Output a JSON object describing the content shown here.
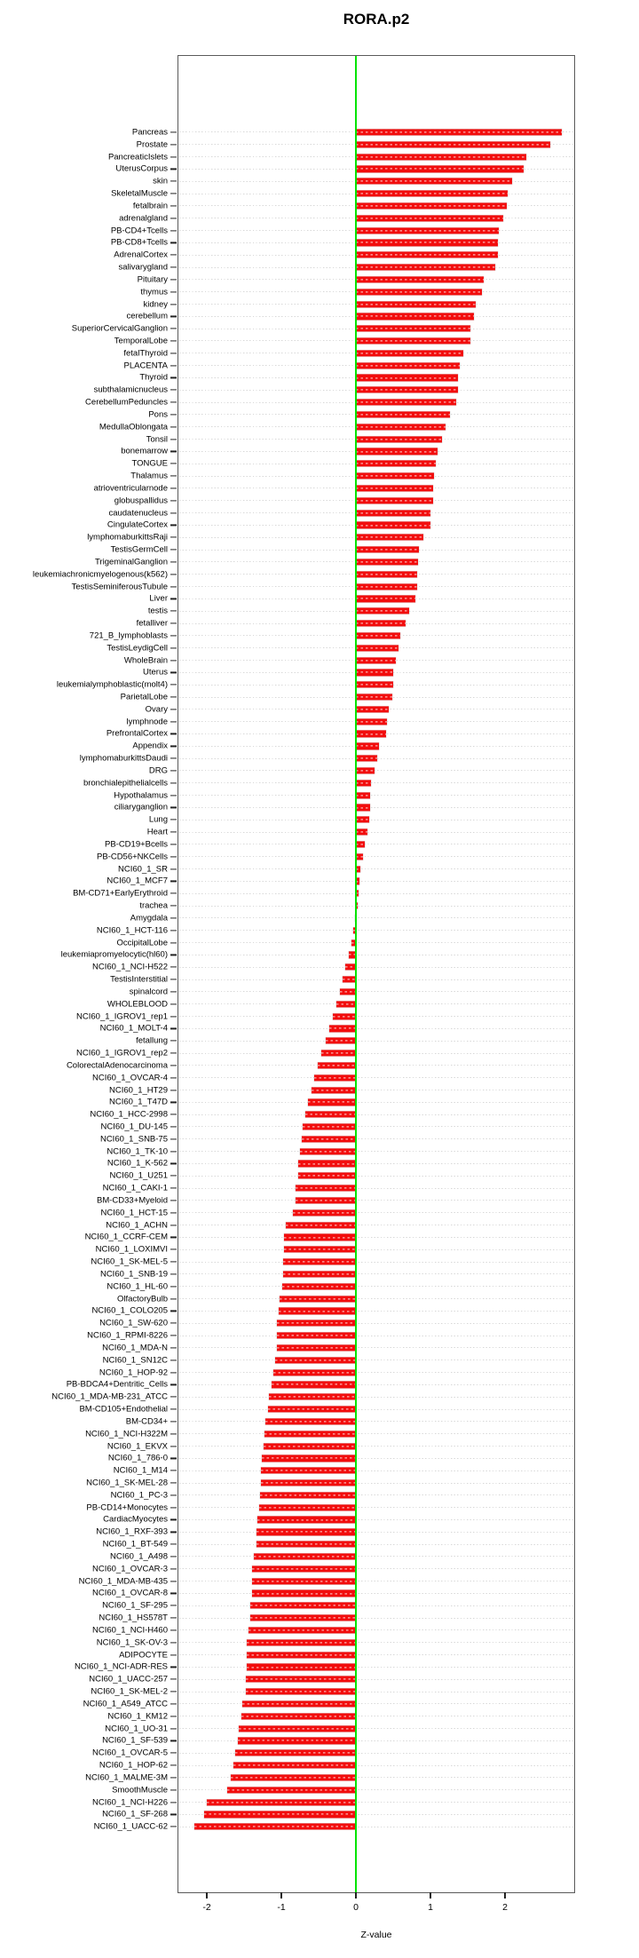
{
  "title": "RORA.p2",
  "chart_data": {
    "type": "bar",
    "orientation": "horizontal",
    "title": "RORA.p2",
    "xlabel": "Z-value",
    "x_ticks": [
      -2,
      -1,
      0,
      1,
      2
    ],
    "xlim": [
      -2.38,
      2.95
    ],
    "grid": true,
    "bar_color": "#f20d0d",
    "zero_line_color": "#00e400",
    "categories": [
      "Pancreas",
      "Prostate",
      "PancreaticIslets",
      "UterusCorpus",
      "skin",
      "SkeletalMuscle",
      "fetalbrain",
      "adrenalgland",
      "PB-CD4+Tcells",
      "PB-CD8+Tcells",
      "AdrenalCortex",
      "salivarygland",
      "Pituitary",
      "thymus",
      "kidney",
      "cerebellum",
      "SuperiorCervicalGanglion",
      "TemporalLobe",
      "fetalThyroid",
      "PLACENTA",
      "Thyroid",
      "subthalamicnucleus",
      "CerebellumPeduncles",
      "Pons",
      "MedullaOblongata",
      "Tonsil",
      "bonemarrow",
      "TONGUE",
      "Thalamus",
      "atrioventricularnode",
      "globuspallidus",
      "caudatenucleus",
      "CingulateCortex",
      "lymphomaburkittsRaji",
      "TestisGermCell",
      "TrigeminalGanglion",
      "leukemiachronicmyelogenous(k562)",
      "TestisSeminiferousTubule",
      "Liver",
      "testis",
      "fetalliver",
      "721_B_lymphoblasts",
      "TestisLeydigCell",
      "WholeBrain",
      "Uterus",
      "leukemialymphoblastic(molt4)",
      "ParietalLobe",
      "Ovary",
      "lymphnode",
      "PrefrontalCortex",
      "Appendix",
      "lymphomaburkittsDaudi",
      "DRG",
      "bronchialepithelialcells",
      "Hypothalamus",
      "ciliaryganglion",
      "Lung",
      "Heart",
      "PB-CD19+Bcells",
      "PB-CD56+NKCells",
      "NCI60_1_SR",
      "NCI60_1_MCF7",
      "BM-CD71+EarlyErythroid",
      "trachea",
      "Amygdala",
      "NCI60_1_HCT-116",
      "OccipitalLobe",
      "leukemiapromyelocytic(hl60)",
      "NCI60_1_NCI-H522",
      "TestisInterstitial",
      "spinalcord",
      "WHOLEBLOOD",
      "NCI60_1_IGROV1_rep1",
      "NCI60_1_MOLT-4",
      "fetallung",
      "NCI60_1_IGROV1_rep2",
      "ColorectalAdenocarcinoma",
      "NCI60_1_OVCAR-4",
      "NCI60_1_HT29",
      "NCI60_1_T47D",
      "NCI60_1_HCC-2998",
      "NCI60_1_DU-145",
      "NCI60_1_SNB-75",
      "NCI60_1_TK-10",
      "NCI60_1_K-562",
      "NCI60_1_U251",
      "NCI60_1_CAKI-1",
      "BM-CD33+Myeloid",
      "NCI60_1_HCT-15",
      "NCI60_1_ACHN",
      "NCI60_1_CCRF-CEM",
      "NCI60_1_LOXIMVI",
      "NCI60_1_SK-MEL-5",
      "NCI60_1_SNB-19",
      "NCI60_1_HL-60",
      "OlfactoryBulb",
      "NCI60_1_COLO205",
      "NCI60_1_SW-620",
      "NCI60_1_RPMI-8226",
      "NCI60_1_MDA-N",
      "NCI60_1_SN12C",
      "NCI60_1_HOP-92",
      "PB-BDCA4+Dentritic_Cells",
      "NCI60_1_MDA-MB-231_ATCC",
      "BM-CD105+Endothelial",
      "BM-CD34+",
      "NCI60_1_NCI-H322M",
      "NCI60_1_EKVX",
      "NCI60_1_786-0",
      "NCI60_1_M14",
      "NCI60_1_SK-MEL-28",
      "NCI60_1_PC-3",
      "PB-CD14+Monocytes",
      "CardiacMyocytes",
      "NCI60_1_RXF-393",
      "NCI60_1_BT-549",
      "NCI60_1_A498",
      "NCI60_1_OVCAR-3",
      "NCI60_1_MDA-MB-435",
      "NCI60_1_OVCAR-8",
      "NCI60_1_SF-295",
      "NCI60_1_HS578T",
      "NCI60_1_NCI-H460",
      "NCI60_1_SK-OV-3",
      "ADIPOCYTE",
      "NCI60_1_NCI-ADR-RES",
      "NCI60_1_UACC-257",
      "NCI60_1_SK-MEL-2",
      "NCI60_1_A549_ATCC",
      "NCI60_1_KM12",
      "NCI60_1_UO-31",
      "NCI60_1_SF-539",
      "NCI60_1_OVCAR-5",
      "NCI60_1_HOP-62",
      "NCI60_1_MALME-3M",
      "SmoothMuscle",
      "NCI60_1_NCI-H226",
      "NCI60_1_SF-268",
      "NCI60_1_UACC-62"
    ],
    "values": [
      2.76,
      2.61,
      2.28,
      2.25,
      2.1,
      2.04,
      2.02,
      1.98,
      1.92,
      1.91,
      1.9,
      1.87,
      1.71,
      1.69,
      1.61,
      1.58,
      1.54,
      1.53,
      1.44,
      1.39,
      1.37,
      1.37,
      1.35,
      1.26,
      1.2,
      1.16,
      1.1,
      1.07,
      1.05,
      1.04,
      1.04,
      1.0,
      1.0,
      0.9,
      0.84,
      0.83,
      0.82,
      0.82,
      0.8,
      0.71,
      0.67,
      0.6,
      0.57,
      0.53,
      0.5,
      0.5,
      0.49,
      0.44,
      0.42,
      0.4,
      0.31,
      0.28,
      0.25,
      0.2,
      0.19,
      0.19,
      0.18,
      0.15,
      0.12,
      0.09,
      0.06,
      0.05,
      0.03,
      0.02,
      -0.01,
      -0.03,
      -0.06,
      -0.1,
      -0.14,
      -0.18,
      -0.22,
      -0.26,
      -0.31,
      -0.36,
      -0.41,
      -0.46,
      -0.51,
      -0.56,
      -0.6,
      -0.64,
      -0.68,
      -0.71,
      -0.73,
      -0.75,
      -0.77,
      -0.77,
      -0.81,
      -0.81,
      -0.85,
      -0.94,
      -0.96,
      -0.96,
      -0.98,
      -0.98,
      -0.99,
      -1.02,
      -1.03,
      -1.06,
      -1.06,
      -1.06,
      -1.08,
      -1.11,
      -1.13,
      -1.17,
      -1.18,
      -1.21,
      -1.23,
      -1.24,
      -1.26,
      -1.27,
      -1.27,
      -1.29,
      -1.3,
      -1.32,
      -1.33,
      -1.33,
      -1.37,
      -1.39,
      -1.39,
      -1.39,
      -1.42,
      -1.42,
      -1.44,
      -1.46,
      -1.46,
      -1.47,
      -1.48,
      -1.48,
      -1.52,
      -1.54,
      -1.57,
      -1.58,
      -1.62,
      -1.64,
      -1.68,
      -1.73,
      -2.0,
      -2.04,
      -2.17
    ]
  }
}
